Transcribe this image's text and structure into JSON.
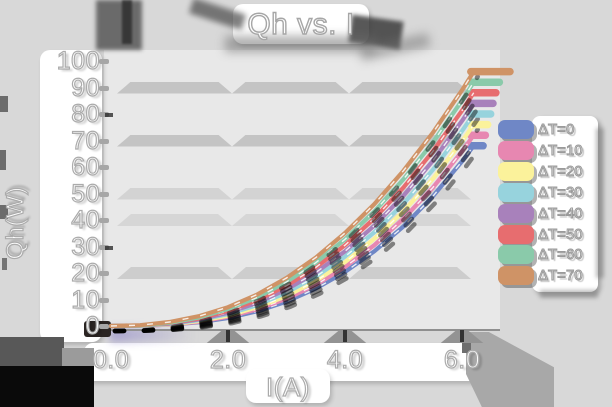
{
  "title": "Qh vs. I",
  "y_axis": {
    "label": "Qh(W)"
  },
  "x_axis": {
    "label": "I(A)"
  },
  "chart_data": {
    "type": "line",
    "title": "Qh vs. I",
    "xlabel": "I(A)",
    "ylabel": "Qh(W)",
    "xlim": [
      0,
      6.9
    ],
    "ylim": [
      0,
      100
    ],
    "grid": "horizontal-bands",
    "gridline_y_values": [
      90,
      70,
      50,
      40,
      20
    ],
    "legend_position": "right",
    "x_ticks": [
      {
        "v": 0,
        "label": "0.0"
      },
      {
        "v": 2,
        "label": "2.0"
      },
      {
        "v": 4,
        "label": "4.0"
      },
      {
        "v": 6,
        "label": "6.0"
      }
    ],
    "y_ticks": [
      {
        "v": 100,
        "label": "100"
      },
      {
        "v": 90,
        "label": "90"
      },
      {
        "v": 80,
        "label": "80"
      },
      {
        "v": 70,
        "label": "70"
      },
      {
        "v": 60,
        "label": "60"
      },
      {
        "v": 50,
        "label": "50"
      },
      {
        "v": 40,
        "label": "40"
      },
      {
        "v": 30,
        "label": "30"
      },
      {
        "v": 20,
        "label": "20"
      },
      {
        "v": 10,
        "label": "10"
      },
      {
        "v": 0,
        "label": "0"
      }
    ],
    "series": [
      {
        "name": "ΔT=0",
        "color": "#6f87c6",
        "cap_end": 6.36,
        "points": [
          [
            0,
            0
          ],
          [
            0.5,
            0.1
          ],
          [
            1,
            0.5
          ],
          [
            1.5,
            1.4
          ],
          [
            2,
            3.0
          ],
          [
            2.5,
            5.6
          ],
          [
            3,
            9.2
          ],
          [
            3.5,
            14.1
          ],
          [
            4,
            20.4
          ],
          [
            4.5,
            28.2
          ],
          [
            5,
            37.6
          ],
          [
            5.5,
            48.9
          ],
          [
            6,
            62.1
          ],
          [
            6.2,
            68
          ]
        ]
      },
      {
        "name": "ΔT=10",
        "color": "#e787b1",
        "cap_end": 6.4,
        "points": [
          [
            0,
            0
          ],
          [
            0.5,
            0.1
          ],
          [
            1,
            0.5
          ],
          [
            1.5,
            1.6
          ],
          [
            2,
            3.5
          ],
          [
            2.5,
            6.3
          ],
          [
            3,
            10.3
          ],
          [
            3.5,
            15.5
          ],
          [
            4,
            22.3
          ],
          [
            4.5,
            30.5
          ],
          [
            5,
            40.5
          ],
          [
            5.5,
            52.2
          ],
          [
            6,
            65.9
          ],
          [
            6.2,
            72
          ]
        ]
      },
      {
        "name": "ΔT=20",
        "color": "#fbf29b",
        "cap_end": 6.44,
        "points": [
          [
            0,
            0
          ],
          [
            0.5,
            0.1
          ],
          [
            1,
            0.6
          ],
          [
            1.5,
            1.9
          ],
          [
            2,
            3.9
          ],
          [
            2.5,
            7.1
          ],
          [
            3,
            11.3
          ],
          [
            3.5,
            17.0
          ],
          [
            4,
            24.1
          ],
          [
            4.5,
            32.9
          ],
          [
            5,
            43.3
          ],
          [
            5.5,
            55.5
          ],
          [
            6,
            69.7
          ],
          [
            6.2,
            76
          ]
        ]
      },
      {
        "name": "ΔT=30",
        "color": "#97d3dd",
        "cap_end": 6.49,
        "points": [
          [
            0,
            0
          ],
          [
            0.5,
            0.1
          ],
          [
            1,
            0.8
          ],
          [
            1.5,
            2.2
          ],
          [
            2,
            4.5
          ],
          [
            2.5,
            7.9
          ],
          [
            3,
            12.6
          ],
          [
            3.5,
            18.6
          ],
          [
            4,
            26.2
          ],
          [
            4.5,
            35.4
          ],
          [
            5,
            46.2
          ],
          [
            5.5,
            58.9
          ],
          [
            6,
            73.6
          ],
          [
            6.2,
            80
          ]
        ]
      },
      {
        "name": "ΔT=40",
        "color": "#a881bb",
        "cap_end": 6.53,
        "points": [
          [
            0,
            0
          ],
          [
            0.5,
            0.2
          ],
          [
            1,
            0.9
          ],
          [
            1.5,
            2.5
          ],
          [
            2,
            5.0
          ],
          [
            2.5,
            8.8
          ],
          [
            3,
            13.8
          ],
          [
            3.5,
            20.2
          ],
          [
            4,
            28.2
          ],
          [
            4.5,
            37.9
          ],
          [
            5,
            49.2
          ],
          [
            5.5,
            62.3
          ],
          [
            6,
            77.4
          ],
          [
            6.2,
            84
          ]
        ]
      },
      {
        "name": "ΔT=50",
        "color": "#e76d6f",
        "cap_end": 6.58,
        "points": [
          [
            0,
            0
          ],
          [
            0.5,
            0.2
          ],
          [
            1,
            1.1
          ],
          [
            1.5,
            2.8
          ],
          [
            2,
            5.7
          ],
          [
            2.5,
            9.8
          ],
          [
            3,
            15.2
          ],
          [
            3.5,
            22.1
          ],
          [
            4,
            30.5
          ],
          [
            4.5,
            40.6
          ],
          [
            5,
            52.3
          ],
          [
            5.5,
            65.9
          ],
          [
            6,
            81.3
          ],
          [
            6.2,
            88
          ]
        ]
      },
      {
        "name": "ΔT=60",
        "color": "#8acaaa",
        "cap_end": 6.64,
        "points": [
          [
            0,
            0
          ],
          [
            0.5,
            0.2
          ],
          [
            1,
            1.2
          ],
          [
            1.5,
            3.2
          ],
          [
            2,
            6.4
          ],
          [
            2.5,
            10.8
          ],
          [
            3,
            16.6
          ],
          [
            3.5,
            23.9
          ],
          [
            4,
            32.7
          ],
          [
            4.5,
            43.2
          ],
          [
            5,
            55.4
          ],
          [
            5.5,
            69.3
          ],
          [
            6,
            85.1
          ],
          [
            6.2,
            92
          ]
        ]
      },
      {
        "name": "ΔT=70",
        "color": "#cf9366",
        "cap_end": 6.82,
        "points": [
          [
            0,
            0
          ],
          [
            0.5,
            0.3
          ],
          [
            1,
            1.5
          ],
          [
            1.5,
            3.7
          ],
          [
            2,
            7.1
          ],
          [
            2.5,
            11.9
          ],
          [
            3,
            18.1
          ],
          [
            3.5,
            25.8
          ],
          [
            4,
            35.1
          ],
          [
            4.5,
            46.0
          ],
          [
            5,
            58.6
          ],
          [
            5.5,
            72.9
          ],
          [
            6,
            89.0
          ],
          [
            6.2,
            96
          ]
        ]
      }
    ]
  }
}
